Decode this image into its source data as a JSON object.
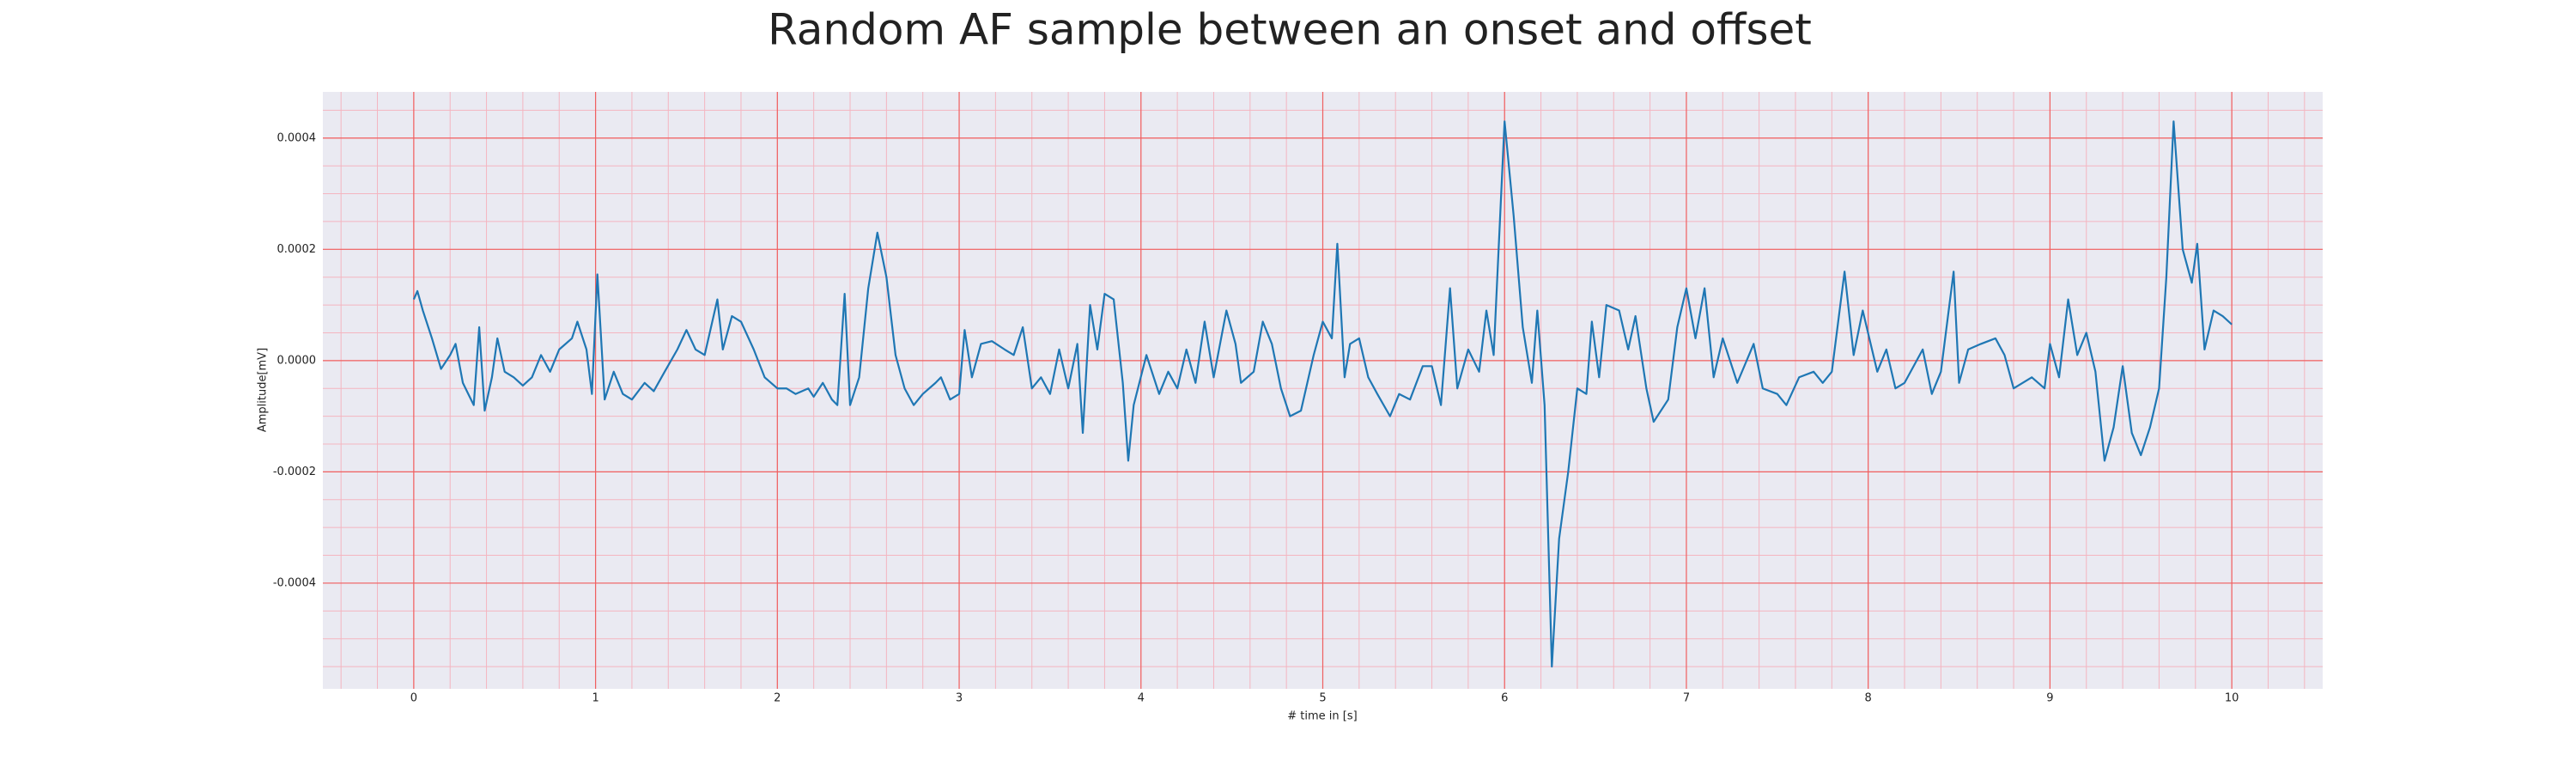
{
  "chart_data": {
    "type": "line",
    "title": "Random AF sample between an onset and offset",
    "xlabel": "# time in [s]",
    "ylabel": "Amplitude[mV]",
    "color": "#1f77b4",
    "grid": true,
    "minor_grid": true,
    "xlim": [
      -0.5,
      10.5
    ],
    "ylim": [
      -0.00059,
      0.000483
    ],
    "xticks": [
      0,
      1,
      2,
      3,
      4,
      5,
      6,
      7,
      8,
      9,
      10
    ],
    "yticks": [
      {
        "value": -0.0004,
        "label": "-0.0004"
      },
      {
        "value": -0.0002,
        "label": "-0.0002"
      },
      {
        "value": 0,
        "label": "0.0000"
      },
      {
        "value": 0.0002,
        "label": "0.0002"
      },
      {
        "value": 0.0004,
        "label": "0.0004"
      }
    ],
    "x": [
      0,
      0.02,
      0.05,
      0.1,
      0.15,
      0.2,
      0.23,
      0.27,
      0.3,
      0.33,
      0.36,
      0.39,
      0.43,
      0.46,
      0.5,
      0.55,
      0.6,
      0.65,
      0.7,
      0.75,
      0.8,
      0.87,
      0.9,
      0.95,
      0.98,
      1.01,
      1.05,
      1.1,
      1.15,
      1.2,
      1.27,
      1.32,
      1.38,
      1.45,
      1.5,
      1.55,
      1.6,
      1.67,
      1.7,
      1.75,
      1.8,
      1.87,
      1.93,
      2.0,
      2.05,
      2.1,
      2.17,
      2.2,
      2.25,
      2.3,
      2.33,
      2.37,
      2.4,
      2.45,
      2.5,
      2.55,
      2.6,
      2.65,
      2.7,
      2.75,
      2.8,
      2.87,
      2.9,
      2.95,
      3.0,
      3.03,
      3.07,
      3.12,
      3.18,
      3.25,
      3.3,
      3.35,
      3.4,
      3.45,
      3.5,
      3.55,
      3.6,
      3.65,
      3.68,
      3.72,
      3.76,
      3.8,
      3.85,
      3.9,
      3.93,
      3.96,
      4.03,
      4.1,
      4.15,
      4.2,
      4.25,
      4.3,
      4.35,
      4.4,
      4.47,
      4.52,
      4.55,
      4.62,
      4.67,
      4.72,
      4.77,
      4.82,
      4.88,
      4.95,
      5.0,
      5.05,
      5.08,
      5.12,
      5.15,
      5.2,
      5.25,
      5.3,
      5.37,
      5.42,
      5.48,
      5.55,
      5.6,
      5.65,
      5.7,
      5.74,
      5.8,
      5.86,
      5.9,
      5.94,
      6.0,
      6.05,
      6.1,
      6.15,
      6.18,
      6.22,
      6.26,
      6.3,
      6.35,
      6.4,
      6.45,
      6.48,
      6.52,
      6.56,
      6.63,
      6.68,
      6.72,
      6.78,
      6.82,
      6.9,
      6.95,
      7.0,
      7.05,
      7.1,
      7.15,
      7.2,
      7.28,
      7.37,
      7.42,
      7.5,
      7.55,
      7.62,
      7.7,
      7.75,
      7.8,
      7.87,
      7.92,
      7.97,
      8.05,
      8.1,
      8.15,
      8.2,
      8.3,
      8.35,
      8.4,
      8.47,
      8.5,
      8.55,
      8.62,
      8.7,
      8.75,
      8.8,
      8.9,
      8.97,
      9.0,
      9.05,
      9.1,
      9.15,
      9.2,
      9.25,
      9.3,
      9.35,
      9.4,
      9.45,
      9.5,
      9.55,
      9.6,
      9.64,
      9.68,
      9.73,
      9.78,
      9.81,
      9.85,
      9.9,
      9.95,
      10.0
    ],
    "values": [
      0.00011,
      0.000125,
      9e-05,
      4e-05,
      -1.5e-05,
      1e-05,
      3e-05,
      -4e-05,
      -6e-05,
      -8e-05,
      6e-05,
      -9e-05,
      -3e-05,
      4e-05,
      -2e-05,
      -3e-05,
      -4.5e-05,
      -3e-05,
      1e-05,
      -2e-05,
      2e-05,
      4e-05,
      7e-05,
      2e-05,
      -6e-05,
      0.000155,
      -7e-05,
      -2e-05,
      -6e-05,
      -7e-05,
      -4e-05,
      -5.5e-05,
      -2e-05,
      2e-05,
      5.5e-05,
      2e-05,
      1e-05,
      0.00011,
      2e-05,
      8e-05,
      7e-05,
      2e-05,
      -3e-05,
      -5e-05,
      -5e-05,
      -6e-05,
      -5e-05,
      -6.5e-05,
      -4e-05,
      -7e-05,
      -8e-05,
      0.00012,
      -8e-05,
      -3e-05,
      0.00013,
      0.00023,
      0.00015,
      1e-05,
      -5e-05,
      -8e-05,
      -6e-05,
      -4e-05,
      -3e-05,
      -7e-05,
      -6e-05,
      5.5e-05,
      -3e-05,
      3e-05,
      3.5e-05,
      2e-05,
      1e-05,
      6e-05,
      -5e-05,
      -3e-05,
      -6e-05,
      2e-05,
      -5e-05,
      3e-05,
      -0.00013,
      0.0001,
      2e-05,
      0.00012,
      0.00011,
      -4e-05,
      -0.00018,
      -8e-05,
      1e-05,
      -6e-05,
      -2e-05,
      -5e-05,
      2e-05,
      -4e-05,
      7e-05,
      -3e-05,
      9e-05,
      3e-05,
      -4e-05,
      -2e-05,
      7e-05,
      3e-05,
      -5e-05,
      -0.0001,
      -9e-05,
      1e-05,
      7e-05,
      4e-05,
      0.00021,
      -3e-05,
      3e-05,
      4e-05,
      -3e-05,
      -6e-05,
      -0.0001,
      -6e-05,
      -7e-05,
      -1e-05,
      -1e-05,
      -8e-05,
      0.00013,
      -5e-05,
      2e-05,
      -2e-05,
      9e-05,
      1e-05,
      0.00043,
      0.00026,
      6e-05,
      -4e-05,
      9e-05,
      -8e-05,
      -0.00055,
      -0.00032,
      -0.0002,
      -5e-05,
      -6e-05,
      7e-05,
      -3e-05,
      0.0001,
      9e-05,
      2e-05,
      8e-05,
      -5e-05,
      -0.00011,
      -7e-05,
      6e-05,
      0.00013,
      4e-05,
      0.00013,
      -3e-05,
      4e-05,
      -4e-05,
      3e-05,
      -5e-05,
      -6e-05,
      -8e-05,
      -3e-05,
      -2e-05,
      -4e-05,
      -2e-05,
      0.00016,
      1e-05,
      9e-05,
      -2e-05,
      2e-05,
      -5e-05,
      -4e-05,
      2e-05,
      -6e-05,
      -2e-05,
      0.00016,
      -4e-05,
      2e-05,
      3e-05,
      4e-05,
      1e-05,
      -5e-05,
      -3e-05,
      -5e-05,
      3e-05,
      -3e-05,
      0.00011,
      1e-05,
      5e-05,
      -2e-05,
      -0.00018,
      -0.00012,
      -1e-05,
      -0.00013,
      -0.00017,
      -0.00012,
      -5e-05,
      0.00015,
      0.00043,
      0.0002,
      0.00014,
      0.00021,
      2e-05,
      9e-05,
      8e-05,
      6.5e-05
    ]
  }
}
